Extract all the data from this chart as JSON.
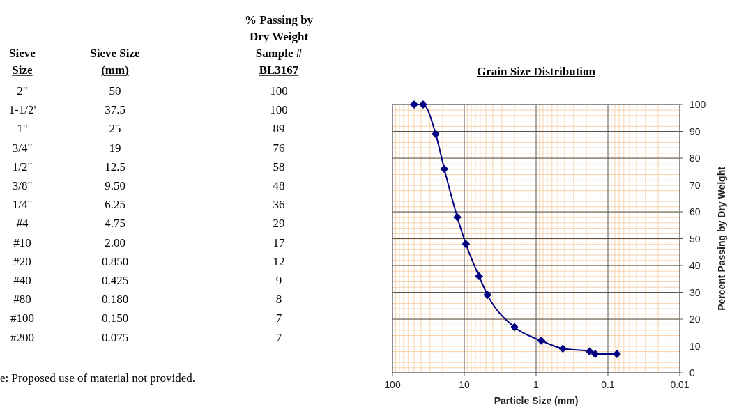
{
  "chart_data": {
    "type": "line",
    "title": "Grain Size Distribution",
    "xlabel": "Particle Size (mm)",
    "ylabel": "Percent Passing by Dry Weight",
    "x": [
      50,
      37.5,
      25,
      19,
      12.5,
      9.5,
      6.25,
      4.75,
      2,
      0.85,
      0.425,
      0.18,
      0.15,
      0.075
    ],
    "series": [
      {
        "color": "#000080",
        "values": [
          100,
          100,
          89,
          76,
          58,
          48,
          36,
          29,
          17,
          12,
          9,
          8,
          7,
          7
        ]
      }
    ],
    "annotations": [
      "Sieve\nSize",
      "Sieve Size\n(mm)",
      "% Passing by\nDry Weight\nSample #\nBL3167",
      "e: Proposed use of material not provided.",
      "2\"",
      "50",
      "100",
      "1-1/2'",
      "37.5",
      "100",
      "1\"",
      "25",
      "89",
      "3/4\"",
      "19",
      "76",
      "1/2\"",
      "12.5",
      "58",
      "3/8\"",
      "9.50",
      "48",
      "1/4\"",
      "6.25",
      "36",
      "#4",
      "4.75",
      "29",
      "#10",
      "2.00",
      "17",
      "#20",
      "0.850",
      "12",
      "#40",
      "0.425",
      "9",
      "#80",
      "0.180",
      "8",
      "#100",
      "0.150",
      "7",
      "#200",
      "0.075",
      "7"
    ],
    "xlim": [
      100,
      0.01
    ],
    "xticks": [
      100,
      10,
      1,
      0.1,
      0.01
    ],
    "ylim": [
      0,
      100
    ],
    "yticks": [
      0,
      10,
      20,
      30,
      40,
      50,
      60,
      70,
      80,
      90,
      100
    ],
    "log": "x",
    "grid": true,
    "marker": "diamond",
    "line_style": "solid"
  }
}
